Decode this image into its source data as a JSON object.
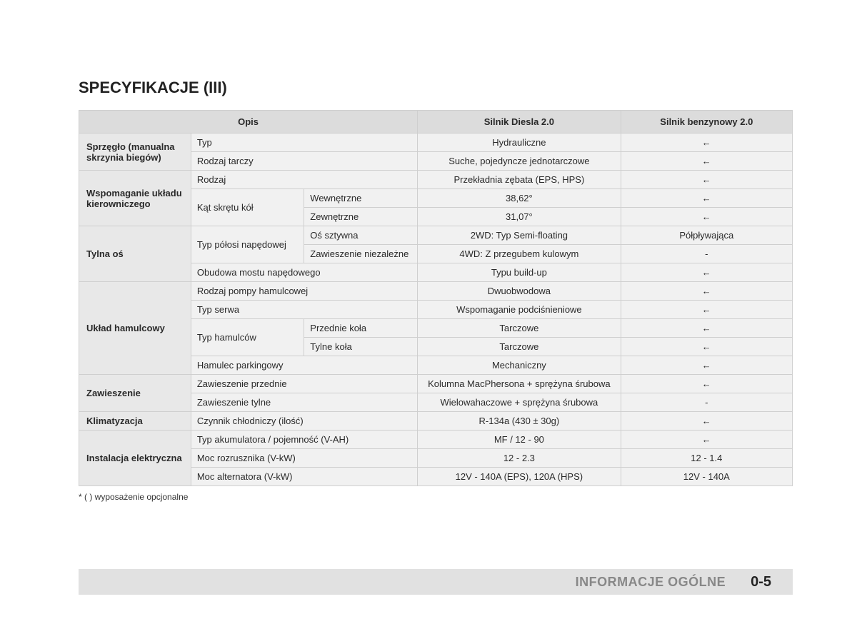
{
  "title": "SPECYFIKACJE (III)",
  "headers": {
    "desc": "Opis",
    "col1": "Silnik Diesla 2.0",
    "col2": "Silnik benzynowy 2.0"
  },
  "rows": {
    "r1cat": "Sprzęgło (manualna skrzynia biegów)",
    "r1d": "Typ",
    "r1v1": "Hydrauliczne",
    "r1v2": "←",
    "r2d": "Rodzaj tarczy",
    "r2v1": "Suche, pojedyncze jednotarczowe",
    "r2v2": "←",
    "r3cat": "Wspomaganie układu kierowniczego",
    "r3d": "Rodzaj",
    "r3v1": "Przekładnia zębata (EPS, HPS)",
    "r3v2": "←",
    "r4d": "Kąt skrętu kół",
    "r4sa": "Wewnętrzne",
    "r4v1": "38,62°",
    "r4v2": "←",
    "r5sa": "Zewnętrzne",
    "r5v1": "31,07°",
    "r5v2": "←",
    "r6cat": "Tylna oś",
    "r6d": "Typ półosi napędowej",
    "r6sa": "Oś sztywna",
    "r6v1": "2WD: Typ Semi-floating",
    "r6v2": "Półpływająca",
    "r7sa": "Zawieszenie niezależne",
    "r7v1": "4WD: Z przegubem kulowym",
    "r7v2": "-",
    "r8d": "Obudowa mostu napędowego",
    "r8v1": "Typu build-up",
    "r8v2": "←",
    "r9cat": "Układ hamulcowy",
    "r9d": "Rodzaj pompy hamulcowej",
    "r9v1": "Dwuobwodowa",
    "r9v2": "←",
    "r10d": "Typ serwa",
    "r10v1": "Wspomaganie podciśnieniowe",
    "r10v2": "←",
    "r11d": "Typ hamulców",
    "r11sa": "Przednie koła",
    "r11v1": "Tarczowe",
    "r11v2": "←",
    "r12sa": "Tylne koła",
    "r12v1": "Tarczowe",
    "r12v2": "←",
    "r13d": "Hamulec parkingowy",
    "r13v1": "Mechaniczny",
    "r13v2": "←",
    "r14cat": "Zawieszenie",
    "r14d": "Zawieszenie przednie",
    "r14v1": "Kolumna MacPhersona + sprężyna śrubowa",
    "r14v2": "←",
    "r15d": "Zawieszenie tylne",
    "r15v1": "Wielowahaczowe + sprężyna śrubowa",
    "r15v2": "-",
    "r16cat": "Klimatyzacja",
    "r16d": "Czynnik chłodniczy (ilość)",
    "r16v1": "R-134a (430 ± 30g)",
    "r16v2": "←",
    "r17cat": "Instalacja elektryczna",
    "r17d": "Typ akumulatora / pojemność (V-AH)",
    "r17v1": "MF / 12 - 90",
    "r17v2": "←",
    "r18d": "Moc rozrusznika (V-kW)",
    "r18v1": "12 - 2.3",
    "r18v2": "12 - 1.4",
    "r19d": "Moc alternatora (V-kW)",
    "r19v1": "12V - 140A (EPS), 120A (HPS)",
    "r19v2": "12V - 140A"
  },
  "footnote": "* (   ) wyposażenie opcjonalne",
  "footer": {
    "label": "INFORMACJE OGÓLNE",
    "page": "0-5"
  },
  "style": {
    "header_bg": "#dcdcdc",
    "cat_bg": "#e8e8e8",
    "cell_bg": "#f1f1f1",
    "border": "#cfcfcf",
    "footer_bg": "#e1e1e1",
    "footer_label_color": "#888888",
    "font": "Arial",
    "fontsize_body": 13,
    "fontsize_title": 22
  }
}
